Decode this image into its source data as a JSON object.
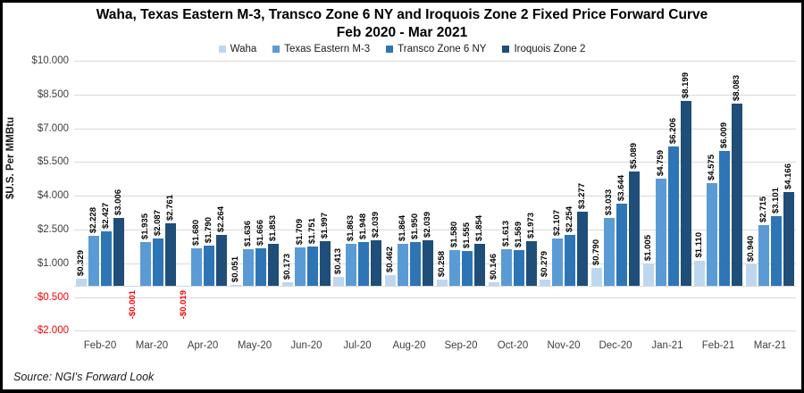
{
  "header": {
    "title_line1": "Waha, Texas Eastern M-3, Transco Zone 6 NY and Iroquois Zone 2 Fixed Price Forward Curve",
    "title_line2": "Feb 2020 - Mar 2021"
  },
  "source": {
    "text": "Source: NGI's Forward Look"
  },
  "colors": {
    "waha": "#bdd7ee",
    "texas_eastern_m3": "#5b9bd5",
    "transco_zone_6_ny": "#2e75b6",
    "iroquois_zone_2": "#1f4e79",
    "negative_text": "#ff0000",
    "gridline": "#d9d9d9"
  },
  "chart_data": {
    "type": "bar",
    "title": "Waha, Texas Eastern M-3, Transco Zone 6 NY and Iroquois Zone 2 Fixed Price Forward Curve Feb 2020 - Mar 2021",
    "xlabel": "",
    "ylabel": "$U.S. Per MMBtu",
    "ylim": [
      -2.0,
      10.0
    ],
    "grid": true,
    "legend_position": "top",
    "label_format": "$0.000 (negatives red, prefixed -$)",
    "categories": [
      "Feb-20",
      "Mar-20",
      "Apr-20",
      "May-20",
      "Jun-20",
      "Jul-20",
      "Aug-20",
      "Sep-20",
      "Oct-20",
      "Nov-20",
      "Dec-20",
      "Jan-21",
      "Feb-21",
      "Mar-21"
    ],
    "y_ticks": [
      {
        "value": 10.0,
        "label": "$10.000"
      },
      {
        "value": 8.5,
        "label": "$8.500"
      },
      {
        "value": 7.0,
        "label": "$7.000"
      },
      {
        "value": 5.5,
        "label": "$5.500"
      },
      {
        "value": 4.0,
        "label": "$4.000"
      },
      {
        "value": 2.5,
        "label": "$2.500"
      },
      {
        "value": 1.0,
        "label": "$1.000"
      },
      {
        "value": -0.5,
        "label": "-$0.500"
      },
      {
        "value": -2.0,
        "label": "-$2.000"
      }
    ],
    "series": [
      {
        "name": "Waha",
        "color": "#bdd7ee",
        "values": [
          0.329,
          -0.001,
          -0.019,
          0.051,
          0.173,
          0.413,
          0.462,
          0.258,
          0.146,
          0.279,
          0.79,
          1.005,
          1.11,
          0.94
        ]
      },
      {
        "name": "Texas Eastern M-3",
        "color": "#5b9bd5",
        "values": [
          2.228,
          1.935,
          1.68,
          1.636,
          1.709,
          1.863,
          1.864,
          1.58,
          1.613,
          2.107,
          3.033,
          4.759,
          4.575,
          2.715
        ]
      },
      {
        "name": "Transco Zone 6 NY",
        "color": "#2e75b6",
        "values": [
          2.427,
          2.087,
          1.79,
          1.666,
          1.751,
          1.948,
          1.95,
          1.555,
          1.569,
          2.254,
          3.644,
          6.206,
          6.009,
          3.101
        ]
      },
      {
        "name": "Iroquois Zone 2",
        "color": "#1f4e79",
        "values": [
          3.006,
          2.761,
          2.264,
          1.853,
          1.997,
          2.039,
          2.039,
          1.854,
          1.973,
          3.277,
          5.089,
          8.199,
          8.083,
          4.166
        ]
      }
    ]
  }
}
